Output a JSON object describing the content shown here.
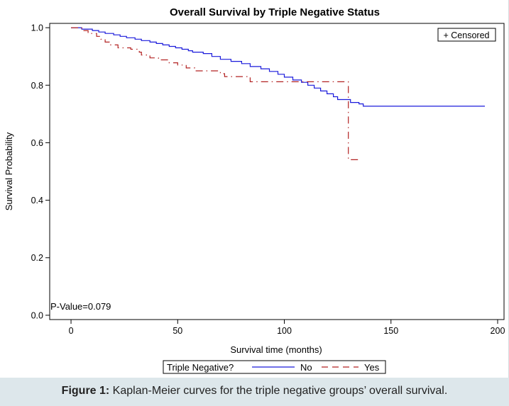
{
  "caption": {
    "label": "Figure 1:",
    "text": " Kaplan-Meier curves for the triple negative groups’ overall survival."
  },
  "colors": {
    "no": "#1a1adb",
    "yes": "#b22222",
    "axis": "#000000",
    "background": "#ffffff",
    "caption_bg": "#dde7eb"
  },
  "chart_data": {
    "type": "line",
    "title": "Overall Survival by Triple Negative Status",
    "xlabel": "Survival time (months)",
    "ylabel": "Survival Probability",
    "xlim": [
      -10,
      203
    ],
    "ylim": [
      -0.015,
      1.015
    ],
    "x_ticks": [
      0,
      50,
      100,
      150,
      200
    ],
    "y_ticks": [
      0.0,
      0.2,
      0.4,
      0.6,
      0.8,
      1.0
    ],
    "x_tick_labels": [
      "0",
      "50",
      "100",
      "150",
      "200"
    ],
    "y_tick_labels": [
      "0.0",
      "0.2",
      "0.4",
      "0.6",
      "0.8",
      "1.0"
    ],
    "censored_label": "+ Censored",
    "annotation": "P-Value=0.079",
    "legend": {
      "title": "Triple Negative?",
      "placement": "bottom",
      "entries": [
        "No",
        "Yes"
      ]
    },
    "series": [
      {
        "name": "No",
        "style": "solid",
        "color": "#1a1adb",
        "steps": [
          [
            0,
            1.0
          ],
          [
            5,
            0.995
          ],
          [
            10,
            0.99
          ],
          [
            13,
            0.985
          ],
          [
            16,
            0.98
          ],
          [
            20,
            0.975
          ],
          [
            23,
            0.97
          ],
          [
            26,
            0.965
          ],
          [
            30,
            0.96
          ],
          [
            33,
            0.955
          ],
          [
            37,
            0.95
          ],
          [
            40,
            0.945
          ],
          [
            43,
            0.94
          ],
          [
            46,
            0.935
          ],
          [
            49,
            0.93
          ],
          [
            52,
            0.925
          ],
          [
            55,
            0.92
          ],
          [
            57,
            0.915
          ],
          [
            62,
            0.91
          ],
          [
            66,
            0.9
          ],
          [
            70,
            0.89
          ],
          [
            75,
            0.883
          ],
          [
            80,
            0.875
          ],
          [
            84,
            0.865
          ],
          [
            89,
            0.857
          ],
          [
            93,
            0.848
          ],
          [
            97,
            0.838
          ],
          [
            100,
            0.828
          ],
          [
            104,
            0.818
          ],
          [
            108,
            0.81
          ],
          [
            111,
            0.8
          ],
          [
            114,
            0.79
          ],
          [
            117,
            0.78
          ],
          [
            120,
            0.77
          ],
          [
            123,
            0.76
          ],
          [
            125,
            0.75
          ],
          [
            131,
            0.74
          ],
          [
            135,
            0.735
          ],
          [
            137,
            0.727
          ],
          [
            194,
            0.727
          ]
        ]
      },
      {
        "name": "Yes",
        "style": "dashed",
        "color": "#b22222",
        "steps": [
          [
            0,
            1.0
          ],
          [
            5,
            0.99
          ],
          [
            8,
            0.98
          ],
          [
            12,
            0.97
          ],
          [
            14,
            0.96
          ],
          [
            16,
            0.95
          ],
          [
            18,
            0.94
          ],
          [
            22,
            0.93
          ],
          [
            28,
            0.925
          ],
          [
            32,
            0.915
          ],
          [
            33,
            0.905
          ],
          [
            37,
            0.895
          ],
          [
            41,
            0.888
          ],
          [
            46,
            0.878
          ],
          [
            50,
            0.87
          ],
          [
            54,
            0.86
          ],
          [
            58,
            0.85
          ],
          [
            70,
            0.84
          ],
          [
            72,
            0.83
          ],
          [
            84,
            0.812
          ],
          [
            100,
            0.812
          ],
          [
            130,
            0.541
          ],
          [
            135,
            0.541
          ]
        ]
      }
    ]
  }
}
